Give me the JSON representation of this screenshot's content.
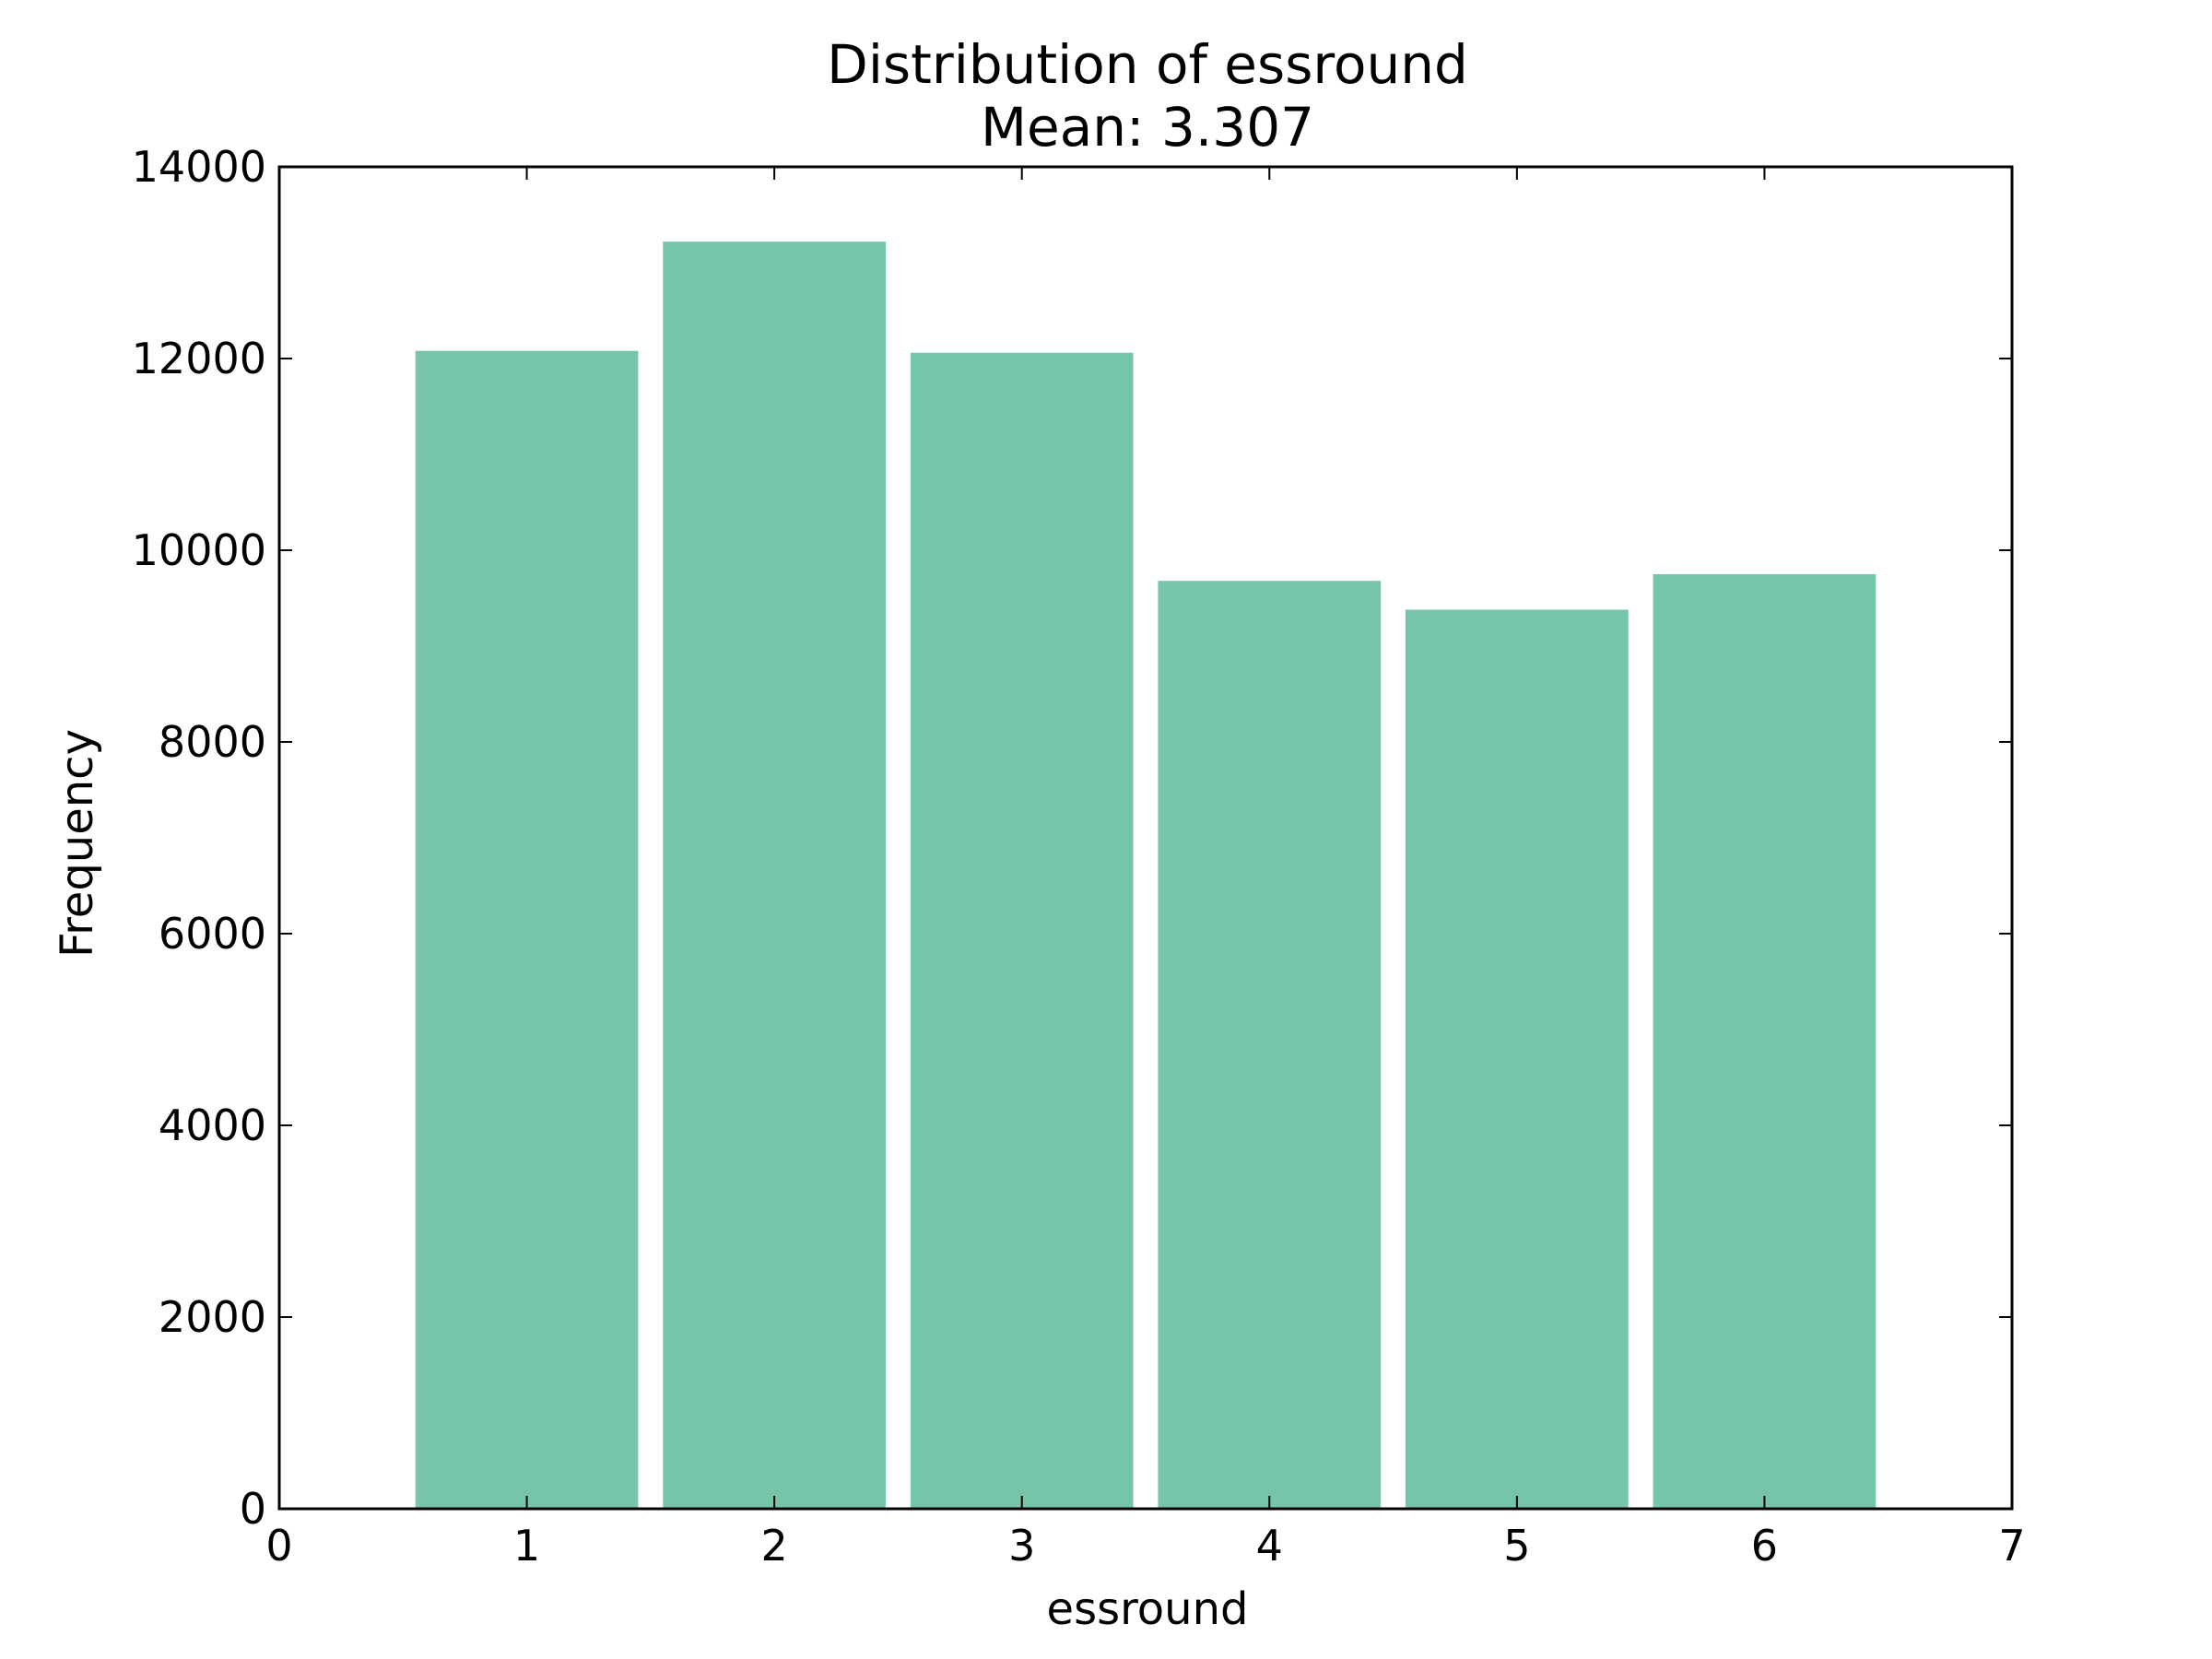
{
  "chart_data": {
    "type": "bar",
    "title": "Distribution of essround",
    "subtitle": "Mean: 3.307",
    "xlabel": "essround",
    "ylabel": "Frequency",
    "x": [
      1,
      2,
      3,
      4,
      5,
      6
    ],
    "bar_width": 0.9,
    "values": [
      12080,
      13220,
      12060,
      9680,
      9380,
      9750
    ],
    "xlim": [
      0,
      7
    ],
    "ylim": [
      0,
      14000
    ],
    "xticks": [
      "0",
      "1",
      "2",
      "3",
      "4",
      "5",
      "6",
      "7"
    ],
    "yticks": [
      "0",
      "2000",
      "4000",
      "6000",
      "8000",
      "10000",
      "12000",
      "14000"
    ],
    "bar_color": "#77c4ad",
    "grid": false,
    "legend": "none"
  }
}
